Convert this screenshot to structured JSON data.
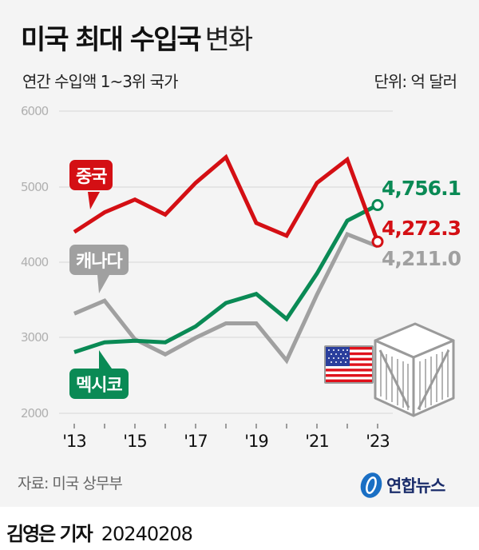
{
  "header": {
    "title_bold": "미국 최대 수입국",
    "title_light": "변화",
    "subtitle": "연간 수입액 1~3위 국가",
    "unit": "단위: 억 달러"
  },
  "axis": {
    "y_ticks": [
      "6000",
      "5000",
      "4000",
      "3000",
      "2000"
    ],
    "x_ticks": [
      "'13",
      "'15",
      "'17",
      "'19",
      "'21",
      "'23"
    ]
  },
  "labels": {
    "china": "중국",
    "canada": "캐나다",
    "mexico": "멕시코"
  },
  "end_values": {
    "mexico": "4,756.1",
    "china": "4,272.3",
    "canada": "4,211.0"
  },
  "colors": {
    "china": "#d40f14",
    "canada": "#a0a0a0",
    "mexico": "#0a8a55",
    "background": "#f4f4f4",
    "grid": "#dcdcdc"
  },
  "footer": {
    "source": "자료: 미국 상무부",
    "logo": "연합뉴스",
    "byline_name": "김영은 기자",
    "byline_date": "20240208"
  },
  "chart_data": {
    "type": "line",
    "title": "미국 최대 수입국 변화",
    "subtitle": "연간 수입액 1~3위 국가",
    "xlabel": "",
    "ylabel": "단위: 억 달러",
    "x": [
      2013,
      2014,
      2015,
      2016,
      2017,
      2018,
      2019,
      2020,
      2021,
      2022,
      2023
    ],
    "x_tick_labels": [
      "'13",
      "'15",
      "'17",
      "'19",
      "'21",
      "'23"
    ],
    "ylim": [
      2000,
      6000
    ],
    "y_ticks": [
      2000,
      3000,
      4000,
      5000,
      6000
    ],
    "grid": true,
    "series": [
      {
        "name": "중국",
        "color": "#d40f14",
        "values": [
          4400,
          4660,
          4830,
          4630,
          5050,
          5390,
          4520,
          4350,
          5050,
          5360,
          4272.3
        ]
      },
      {
        "name": "캐나다",
        "color": "#a0a0a0",
        "values": [
          3320,
          3490,
          2980,
          2780,
          3000,
          3190,
          3190,
          2700,
          3570,
          4370,
          4211.0
        ]
      },
      {
        "name": "멕시코",
        "color": "#0a8a55",
        "values": [
          2810,
          2940,
          2960,
          2940,
          3150,
          3460,
          3580,
          3250,
          3850,
          4550,
          4756.1
        ]
      }
    ],
    "annotations": [
      "4,756.1",
      "4,272.3",
      "4,211.0"
    ]
  }
}
